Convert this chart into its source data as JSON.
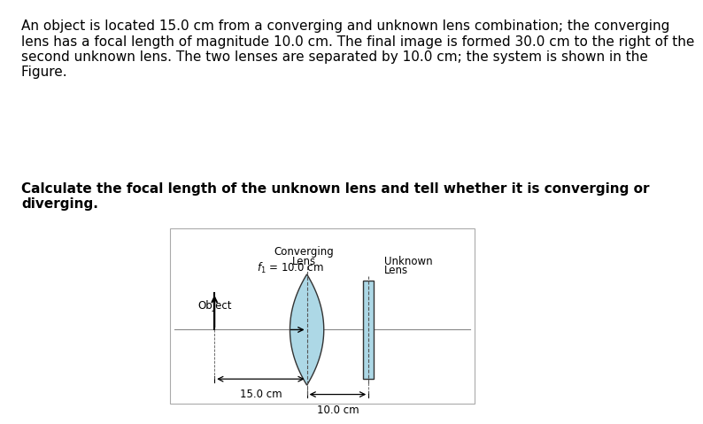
{
  "text_paragraph": "An object is located 15.0 cm from a converging and unknown lens combination; the converging\nlens has a focal length of magnitude 10.0 cm. The final image is formed 30.0 cm to the right of the\nsecond unknown lens. The two lenses are separated by 10.0 cm; the system is shown in the\nFigure. ",
  "text_bold": "Calculate the focal length of the unknown lens and tell whether it is converging or\ndiverging.",
  "fig_bg": "#ffffff",
  "diagram_bg": "#ffffff",
  "diagram_border": "#aaaaaa",
  "lens_color": "#add8e6",
  "lens_edge": "#333333",
  "unknown_lens_color": "#add8e6",
  "axis_color": "#888888",
  "arrow_color": "#000000",
  "dashed_color": "#555555",
  "object_label": "Object",
  "converging_label_line1": "Converging",
  "converging_label_line2": "Lens",
  "converging_label_line3": "f₁ = 10.0 cm",
  "unknown_label_line1": "Unknown",
  "unknown_label_line2": "Lens",
  "dist1_label": "15.0 cm",
  "dist2_label": "10.0 cm",
  "text_color_normal": "#000000",
  "text_color_highlight": "#cc0000"
}
